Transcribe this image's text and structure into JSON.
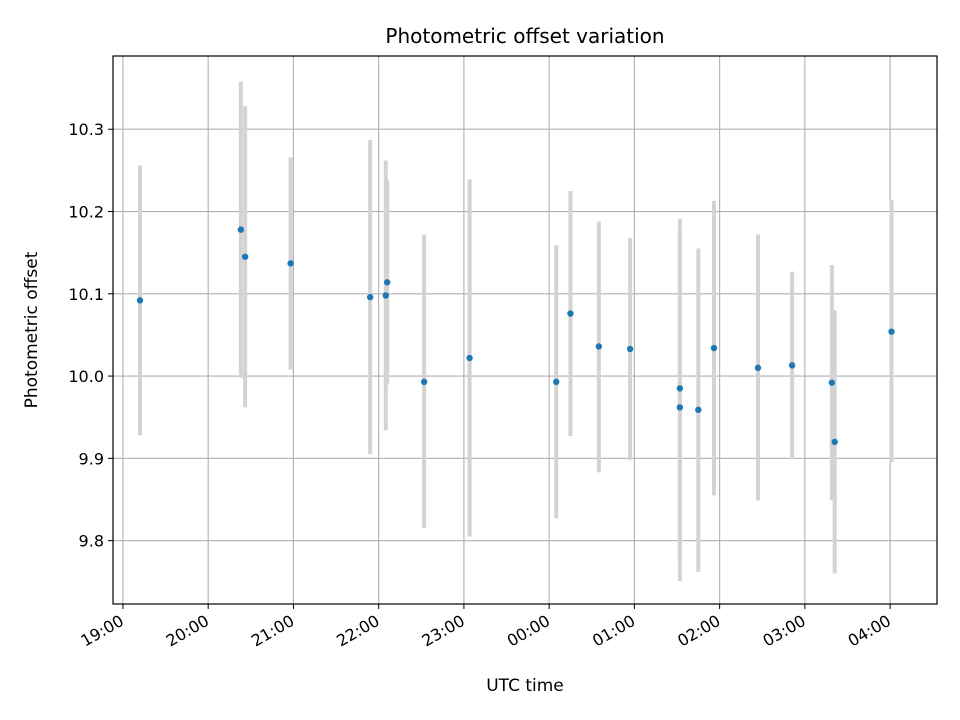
{
  "chart_data": {
    "type": "scatter",
    "title": "Photometric offset variation",
    "xlabel": "UTC time",
    "ylabel": "Photometric offset",
    "x_unit": "hours (UTC, night spanning midnight)",
    "x_ticks": [
      "19:00",
      "20:00",
      "21:00",
      "22:00",
      "23:00",
      "00:00",
      "01:00",
      "02:00",
      "03:00",
      "04:00"
    ],
    "y_ticks": [
      "9.8",
      "9.9",
      "10.0",
      "10.1",
      "10.2",
      "10.3"
    ],
    "xlim": [
      "18:53",
      "04:33"
    ],
    "ylim": [
      9.723,
      10.389
    ],
    "grid": true,
    "colors": {
      "marker": "#1f77b4",
      "errorbar": "#d3d3d3",
      "grid": "#b0b0b0"
    },
    "series": [
      {
        "points": [
          {
            "x": "19:12",
            "y": 10.092,
            "ylow": 9.928,
            "yhigh": 10.256
          },
          {
            "x": "20:23",
            "y": 10.178,
            "ylow": 9.998,
            "yhigh": 10.358
          },
          {
            "x": "20:26",
            "y": 10.145,
            "ylow": 9.962,
            "yhigh": 10.328
          },
          {
            "x": "20:58",
            "y": 10.137,
            "ylow": 10.008,
            "yhigh": 10.266
          },
          {
            "x": "21:54",
            "y": 10.096,
            "ylow": 9.905,
            "yhigh": 10.287
          },
          {
            "x": "22:05",
            "y": 10.098,
            "ylow": 9.934,
            "yhigh": 10.262
          },
          {
            "x": "22:06",
            "y": 10.114,
            "ylow": 9.99,
            "yhigh": 10.238
          },
          {
            "x": "22:32",
            "y": 9.993,
            "ylow": 9.815,
            "yhigh": 10.172
          },
          {
            "x": "23:04",
            "y": 10.022,
            "ylow": 9.805,
            "yhigh": 10.239
          },
          {
            "x": "00:05",
            "y": 9.993,
            "ylow": 9.827,
            "yhigh": 10.159
          },
          {
            "x": "00:15",
            "y": 10.076,
            "ylow": 9.927,
            "yhigh": 10.225
          },
          {
            "x": "00:35",
            "y": 10.036,
            "ylow": 9.883,
            "yhigh": 10.188
          },
          {
            "x": "00:57",
            "y": 10.033,
            "ylow": 9.898,
            "yhigh": 10.168
          },
          {
            "x": "01:32",
            "y": 9.985,
            "ylow": 9.779,
            "yhigh": 10.191
          },
          {
            "x": "01:32",
            "y": 9.962,
            "ylow": 9.751,
            "yhigh": 10.174
          },
          {
            "x": "01:45",
            "y": 9.959,
            "ylow": 9.762,
            "yhigh": 10.155
          },
          {
            "x": "01:56",
            "y": 10.034,
            "ylow": 9.855,
            "yhigh": 10.213
          },
          {
            "x": "02:27",
            "y": 10.01,
            "ylow": 9.849,
            "yhigh": 10.172
          },
          {
            "x": "02:51",
            "y": 10.013,
            "ylow": 9.899,
            "yhigh": 10.127
          },
          {
            "x": "03:19",
            "y": 9.992,
            "ylow": 9.849,
            "yhigh": 10.135
          },
          {
            "x": "03:21",
            "y": 9.92,
            "ylow": 9.76,
            "yhigh": 10.08
          },
          {
            "x": "04:01",
            "y": 10.054,
            "ylow": 9.895,
            "yhigh": 10.214
          }
        ]
      }
    ]
  }
}
